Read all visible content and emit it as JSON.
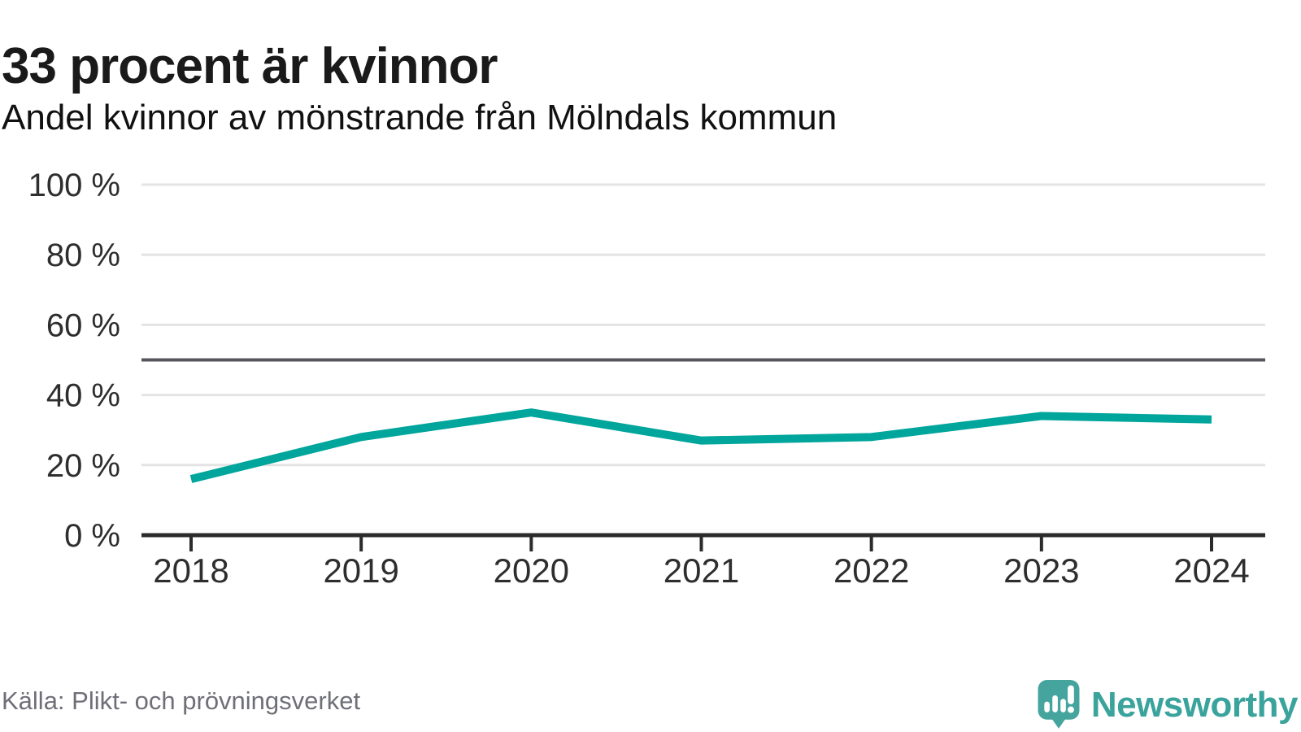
{
  "header": {
    "title": "33 procent är kvinnor",
    "subtitle": "Andel kvinnor av mönstrande från Mölndals kommun"
  },
  "chart_data": {
    "type": "line",
    "x": [
      2018,
      2019,
      2020,
      2021,
      2022,
      2023,
      2024
    ],
    "series": [
      {
        "name": "Andel kvinnor av mönstrande",
        "values": [
          16,
          28,
          35,
          27,
          28,
          34,
          33
        ]
      }
    ],
    "title": "33 procent är kvinnor",
    "subtitle": "Andel kvinnor av mönstrande från Mölndals kommun",
    "xlabel": "",
    "ylabel": "",
    "ylim": [
      0,
      100
    ],
    "yticks": [
      0,
      20,
      40,
      60,
      80,
      100
    ],
    "ytick_suffix": " %",
    "reference_line": 50,
    "grid": true,
    "legend": "none",
    "line_color": "#00a59b",
    "reference_line_color": "#55555d",
    "axis_color": "#2b2b2b",
    "gridline_color": "#e4e4e4",
    "tick_label_color": "#2e2e2e"
  },
  "footer": {
    "source": "Källa: Plikt- och prövningsverket",
    "brand": "Newsworthy",
    "brand_color": "#3aa39c",
    "brand_icon": "newsworthy-bubble-chart-icon"
  }
}
